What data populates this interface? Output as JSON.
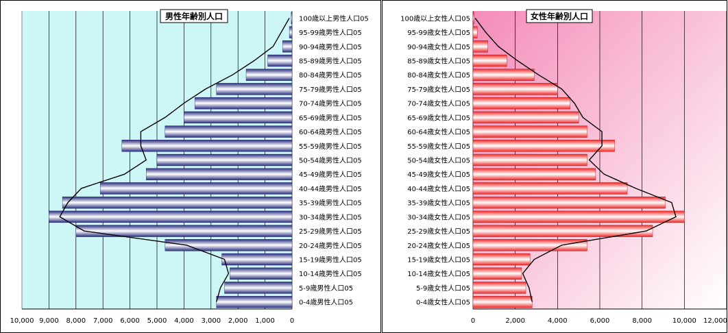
{
  "chart_data": [
    {
      "type": "bar",
      "orientation": "horizontal",
      "direction": "right-to-left",
      "title": "男性年齢別人口",
      "categories": [
        "0-4歳男性人口05",
        "5-9歳男性人口05",
        "10-14歳男性人口05",
        "15-19歳男性人口05",
        "20-24歳男性人口05",
        "25-29歳男性人口05",
        "30-34歳男性人口05",
        "35-39歳男性人口05",
        "40-44歳男性人口05",
        "45-49歳男性人口05",
        "50-54歳男性人口05",
        "55-59歳男性人口05",
        "60-64歳男性人口05",
        "65-69歳男性人口05",
        "70-74歳男性人口05",
        "75-79歳男性人口05",
        "80-84歳男性人口05",
        "85-89歳男性人口05",
        "90-94歳男性人口05",
        "95-99歳男性人口05",
        "100歳以上男性人口05"
      ],
      "values": [
        2800,
        2500,
        2300,
        2600,
        4700,
        8000,
        9000,
        8500,
        7100,
        5400,
        5000,
        6300,
        4700,
        4000,
        3600,
        2800,
        1700,
        900,
        350,
        100,
        30
      ],
      "line_series": [
        2800,
        2650,
        2350,
        2500,
        3900,
        7700,
        8600,
        8300,
        7800,
        6200,
        5400,
        5600,
        5600,
        4700,
        4000,
        3200,
        2200,
        1400,
        700,
        400,
        100
      ],
      "xlim": [
        0,
        10000
      ],
      "xticks": [
        "10,000",
        "9,000",
        "8,000",
        "7,000",
        "6,000",
        "5,000",
        "4,000",
        "3,000",
        "2,000",
        "1,000",
        "0"
      ],
      "background": "#cdf6f6",
      "bar_color": "#2a2d7e"
    },
    {
      "type": "bar",
      "orientation": "horizontal",
      "direction": "left-to-right",
      "title": "女性年齢別人口",
      "categories": [
        "0-4歳女性人口05",
        "5-9歳女性人口05",
        "10-14歳女性人口05",
        "15-19歳女性人口05",
        "20-24歳女性人口05",
        "25-29歳女性人口05",
        "30-34歳女性人口05",
        "35-39歳女性人口05",
        "40-44歳女性人口05",
        "45-49歳女性人口05",
        "50-54歳女性人口05",
        "55-59歳女性人口05",
        "60-64歳女性人口05",
        "65-69歳女性人口05",
        "70-74歳女性人口05",
        "75-79歳女性人口05",
        "80-84歳女性人口05",
        "85-89歳女性人口05",
        "90-94歳女性人口05",
        "95-99歳女性人口05",
        "100歳以上女性人口05"
      ],
      "values": [
        2800,
        2500,
        2300,
        2700,
        5400,
        8500,
        10000,
        9100,
        7300,
        5800,
        5400,
        6700,
        5400,
        5000,
        4600,
        4000,
        2900,
        1600,
        700,
        200,
        50
      ],
      "line_series": [
        2800,
        2650,
        2350,
        2900,
        4200,
        8200,
        9600,
        9400,
        7700,
        6200,
        5500,
        6100,
        6100,
        5200,
        4800,
        4200,
        3100,
        2100,
        1200,
        600,
        100
      ],
      "xlim": [
        0,
        12000
      ],
      "xticks": [
        "0",
        "2,000",
        "4,000",
        "6,000",
        "8,000",
        "10,000",
        "12,000"
      ],
      "background": "#f48cb8",
      "bar_color": "#ee2828"
    }
  ]
}
